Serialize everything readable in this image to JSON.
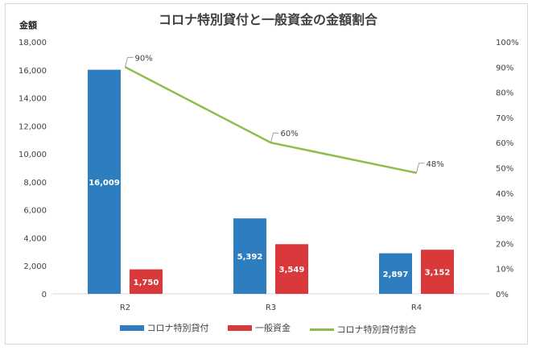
{
  "chart_data": {
    "type": "bar",
    "title": "コロナ特別貸付と一般資金の金額割合",
    "ylabel": "金額",
    "categories": [
      "R2",
      "R3",
      "R4"
    ],
    "ylim": [
      0,
      18000
    ],
    "y_ticks": [
      "0",
      "2,000",
      "4,000",
      "6,000",
      "8,000",
      "10,000",
      "12,000",
      "14,000",
      "16,000",
      "18,000"
    ],
    "y2lim": [
      0,
      100
    ],
    "y2_ticks": [
      "0%",
      "10%",
      "20%",
      "30%",
      "40%",
      "50%",
      "60%",
      "70%",
      "80%",
      "90%",
      "100%"
    ],
    "series": [
      {
        "name": "コロナ特別貸付",
        "kind": "bar",
        "color": "#2e7ebf",
        "values": [
          16009,
          5392,
          2897
        ],
        "labels": [
          "16,009",
          "5,392",
          "2,897"
        ]
      },
      {
        "name": "一般資金",
        "kind": "bar",
        "color": "#d9393b",
        "values": [
          1750,
          3549,
          3152
        ],
        "labels": [
          "1,750",
          "3,549",
          "3,152"
        ]
      },
      {
        "name": "コロナ特別貸付割合",
        "kind": "line",
        "axis": "right",
        "color": "#8dbd4a",
        "values": [
          90,
          60,
          48
        ],
        "labels": [
          "90%",
          "60%",
          "48%"
        ]
      }
    ],
    "legend": "bottom",
    "grid": false
  }
}
